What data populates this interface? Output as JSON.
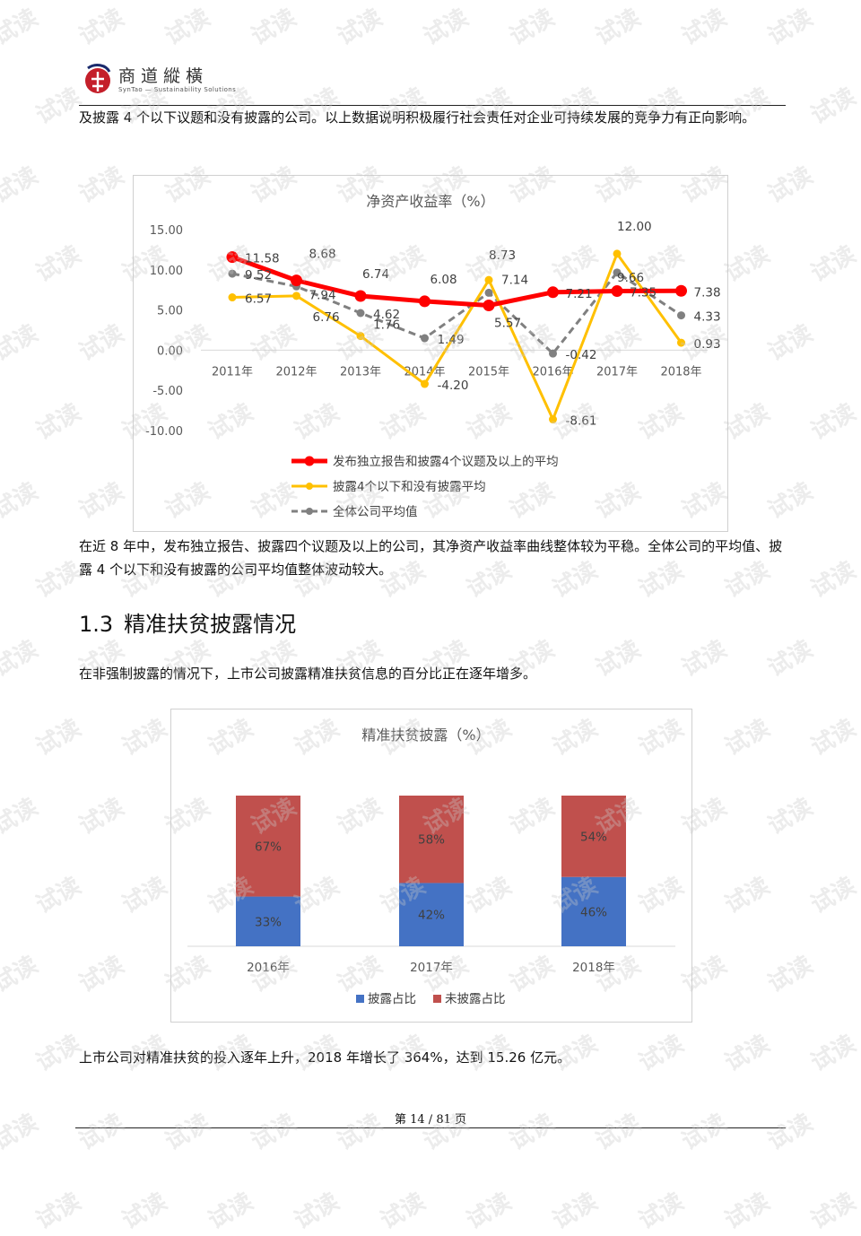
{
  "header": {
    "logo_cn": "商道縱橫",
    "logo_en": "SynTao — Sustainability Solutions"
  },
  "paragraphs": {
    "p1": "及披露 4 个以下议题和没有披露的公司。以上数据说明积极履行社会责任对企业可持续发展的竞争力有正向影响。",
    "p2": "在近 8 年中，发布独立报告、披露四个议题及以上的公司，其净资产收益率曲线整体较为平稳。全体公司的平均值、披露 4 个以下和没有披露的公司平均值整体波动较大。",
    "p3": "在非强制披露的情况下，上市公司披露精准扶贫信息的百分比正在逐年增多。",
    "p4": "上市公司对精准扶贫的投入逐年上升，2018 年增长了 364%，达到 15.26 亿元。"
  },
  "section": {
    "number": "1.3",
    "title": "精准扶贫披露情况"
  },
  "footer": {
    "page_text": "第 14 / 81 页"
  },
  "watermark_text": "试读",
  "chart_data": [
    {
      "type": "line",
      "title": "净资产收益率（%）",
      "categories": [
        "2011年",
        "2012年",
        "2013年",
        "2014年",
        "2015年",
        "2016年",
        "2017年",
        "2018年"
      ],
      "ylim": [
        -10,
        15
      ],
      "yticks": [
        "15.00",
        "10.00",
        "5.00",
        "0.00",
        "-5.00",
        "-10.00"
      ],
      "legend_position": "bottom",
      "series": [
        {
          "name": "发布独立报告和披露4个议题及以上的平均",
          "color": "#ff0000",
          "style": "solid-thick",
          "values": [
            11.58,
            8.68,
            6.74,
            6.08,
            5.57,
            7.21,
            7.35,
            7.38
          ],
          "labels": [
            "11.58",
            "8.68",
            "6.74",
            "6.08",
            "5.57",
            "7.21",
            "7.35",
            "7.38"
          ]
        },
        {
          "name": "披露4个以下和没有披露平均",
          "color": "#ffc000",
          "style": "solid",
          "values": [
            6.57,
            6.76,
            1.76,
            -4.2,
            8.73,
            -8.61,
            12.0,
            0.93
          ],
          "labels": [
            "6.57",
            "6.76",
            "1.76",
            "-4.20",
            "8.73",
            "-8.61",
            "12.00",
            "0.93"
          ]
        },
        {
          "name": "全体公司平均值",
          "color": "#808080",
          "style": "dashed",
          "values": [
            9.52,
            7.94,
            4.62,
            1.49,
            7.14,
            -0.42,
            9.66,
            4.33
          ],
          "labels": [
            "9.52",
            "7.94",
            "4.62",
            "1.49",
            "7.14",
            "-0.42",
            "9.66",
            "4.33"
          ]
        }
      ]
    },
    {
      "type": "bar",
      "stacked": true,
      "title": "精准扶贫披露（%）",
      "categories": [
        "2016年",
        "2017年",
        "2018年"
      ],
      "legend_position": "bottom",
      "series": [
        {
          "name": "披露占比",
          "color": "#4472c4",
          "values": [
            33,
            42,
            46
          ],
          "labels": [
            "33%",
            "42%",
            "46%"
          ]
        },
        {
          "name": "未披露占比",
          "color": "#c0504d",
          "values": [
            67,
            58,
            54
          ],
          "labels": [
            "67%",
            "58%",
            "54%"
          ]
        }
      ]
    }
  ]
}
